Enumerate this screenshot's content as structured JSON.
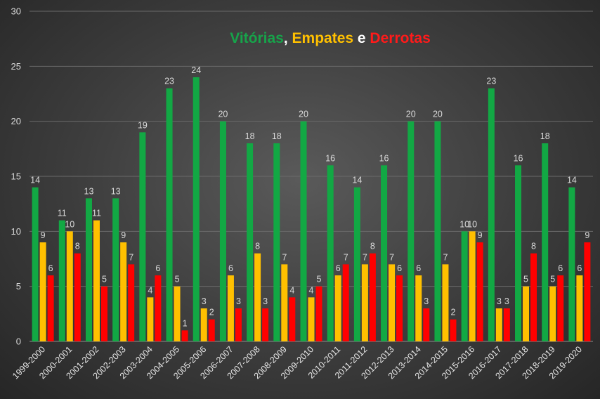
{
  "chart_data": {
    "type": "bar",
    "title_parts": [
      {
        "text": "Vitórias",
        "color": "#17a34a"
      },
      {
        "text": ", ",
        "color": "#ffffff"
      },
      {
        "text": "Empates",
        "color": "#ffc000"
      },
      {
        "text": " e ",
        "color": "#ffffff"
      },
      {
        "text": "Derrotas",
        "color": "#ff1a1a"
      }
    ],
    "categories": [
      "1999-2000",
      "2000-2001",
      "2001-2002",
      "2002-2003",
      "2003-2004",
      "2004-2005",
      "2005-2006",
      "2006-2007",
      "2007-2008",
      "2008-2009",
      "2009-2010",
      "2010-2011",
      "2011-2012",
      "2012-2013",
      "2013-2014",
      "2014-2015",
      "2015-2016",
      "2016-2017",
      "2017-2018",
      "2018-2019",
      "2019-2020"
    ],
    "series": [
      {
        "color": "#12a844",
        "values": [
          14,
          11,
          13,
          13,
          19,
          23,
          24,
          20,
          18,
          18,
          20,
          16,
          14,
          16,
          20,
          20,
          10,
          23,
          16,
          18,
          14
        ]
      },
      {
        "color": "#ffc000",
        "values": [
          9,
          10,
          11,
          9,
          4,
          5,
          3,
          6,
          8,
          7,
          4,
          6,
          7,
          7,
          6,
          7,
          10,
          3,
          5,
          5,
          6
        ]
      },
      {
        "color": "#ff0000",
        "values": [
          6,
          8,
          5,
          7,
          6,
          1,
          2,
          3,
          3,
          4,
          5,
          7,
          8,
          6,
          3,
          2,
          9,
          3,
          8,
          6,
          9
        ]
      }
    ],
    "yticks": [
      0,
      5,
      10,
      15,
      20,
      25,
      30
    ],
    "ylim": [
      0,
      30
    ],
    "grid": true,
    "data_labels": true
  }
}
